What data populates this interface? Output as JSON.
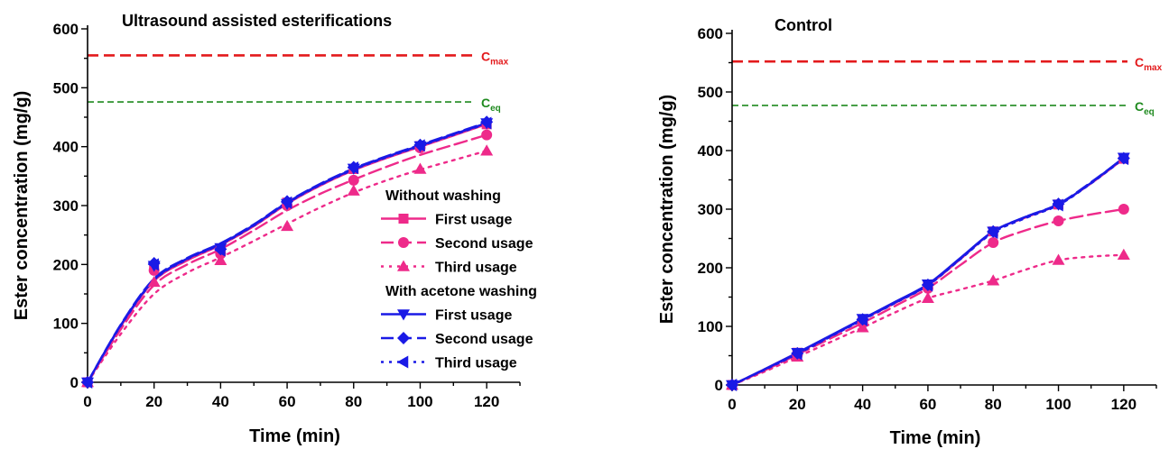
{
  "colors": {
    "magenta": "#ee2a8a",
    "blue": "#1a1ae6",
    "cmax": "#e31a1c",
    "ceq": "#1f8a1f",
    "axis": "#000000"
  },
  "chart_data": [
    {
      "type": "line",
      "title": "Ultrasound  assisted esterifications",
      "xlabel": "Time (min)",
      "ylabel": "Ester concentration (mg/g)",
      "xlim": [
        0,
        130
      ],
      "ylim": [
        0,
        600
      ],
      "xticks": [
        0,
        20,
        40,
        60,
        80,
        100,
        120
      ],
      "yticks": [
        0,
        100,
        200,
        300,
        400,
        500,
        600
      ],
      "x": [
        0,
        20,
        40,
        60,
        80,
        100,
        120
      ],
      "reference_lines": [
        {
          "label": "C",
          "sub": "max",
          "value": 555,
          "color": "#e31a1c"
        },
        {
          "label": "C",
          "sub": "eq",
          "value": 476,
          "color": "#1f8a1f"
        }
      ],
      "legend": {
        "groups": [
          {
            "heading": "Without washing",
            "items": [
              {
                "label": "First usage",
                "series": 0
              },
              {
                "label": "Second usage",
                "series": 1
              },
              {
                "label": "Third usage",
                "series": 2
              }
            ]
          },
          {
            "heading": "With acetone washing",
            "items": [
              {
                "label": "First usage",
                "series": 3
              },
              {
                "label": "Second usage",
                "series": 4
              },
              {
                "label": "Third usage",
                "series": 5
              }
            ]
          }
        ]
      },
      "series": [
        {
          "name": "Without washing – First usage",
          "color": "#ee2a8a",
          "dash": "solid",
          "marker": "square",
          "values": [
            0,
            195,
            225,
            305,
            362,
            401,
            438
          ],
          "curve": [
            [
              0,
              0
            ],
            [
              10,
              95
            ],
            [
              20,
              172
            ],
            [
              30,
              207
            ],
            [
              40,
              233
            ],
            [
              50,
              265
            ],
            [
              60,
              303
            ],
            [
              70,
              334
            ],
            [
              80,
              360
            ],
            [
              90,
              381
            ],
            [
              100,
              400
            ],
            [
              110,
              419
            ],
            [
              120,
              438
            ]
          ]
        },
        {
          "name": "Without washing – Second usage",
          "color": "#ee2a8a",
          "dash": "dashed",
          "marker": "circle",
          "values": [
            0,
            190,
            218,
            300,
            343,
            398,
            420
          ],
          "curve": [
            [
              0,
              0
            ],
            [
              10,
              90
            ],
            [
              20,
              165
            ],
            [
              30,
              200
            ],
            [
              40,
              226
            ],
            [
              50,
              258
            ],
            [
              60,
              292
            ],
            [
              70,
              320
            ],
            [
              80,
              344
            ],
            [
              90,
              366
            ],
            [
              100,
              386
            ],
            [
              110,
              403
            ],
            [
              120,
              420
            ]
          ]
        },
        {
          "name": "Without washing – Third usage",
          "color": "#ee2a8a",
          "dash": "dotted",
          "marker": "triangle-up",
          "values": [
            0,
            170,
            207,
            265,
            325,
            362,
            393
          ],
          "curve": [
            [
              0,
              0
            ],
            [
              10,
              82
            ],
            [
              20,
              150
            ],
            [
              30,
              186
            ],
            [
              40,
              212
            ],
            [
              50,
              240
            ],
            [
              60,
              269
            ],
            [
              70,
              297
            ],
            [
              80,
              322
            ],
            [
              90,
              343
            ],
            [
              100,
              361
            ],
            [
              110,
              377
            ],
            [
              120,
              393
            ]
          ]
        },
        {
          "name": "With acetone washing – First usage",
          "color": "#1a1ae6",
          "dash": "solid",
          "marker": "triangle-down",
          "values": [
            0,
            198,
            228,
            303,
            363,
            401,
            440
          ],
          "curve": [
            [
              0,
              0
            ],
            [
              10,
              97
            ],
            [
              20,
              174
            ],
            [
              30,
              210
            ],
            [
              40,
              235
            ],
            [
              50,
              267
            ],
            [
              60,
              305
            ],
            [
              70,
              336
            ],
            [
              80,
              362
            ],
            [
              90,
              383
            ],
            [
              100,
              402
            ],
            [
              110,
              421
            ],
            [
              120,
              440
            ]
          ]
        },
        {
          "name": "With acetone washing – Second usage",
          "color": "#1a1ae6",
          "dash": "dashed",
          "marker": "diamond",
          "values": [
            0,
            202,
            226,
            307,
            365,
            403,
            442
          ],
          "curve": [
            [
              0,
              0
            ],
            [
              10,
              98
            ],
            [
              20,
              176
            ],
            [
              30,
              211
            ],
            [
              40,
              236
            ],
            [
              50,
              268
            ],
            [
              60,
              306
            ],
            [
              70,
              337
            ],
            [
              80,
              363
            ],
            [
              90,
              384
            ],
            [
              100,
              403
            ],
            [
              110,
              422
            ],
            [
              120,
              441
            ]
          ]
        },
        {
          "name": "With acetone washing – Third usage",
          "color": "#1a1ae6",
          "dash": "dotted",
          "marker": "triangle-left",
          "values": [
            0,
            200,
            224,
            305,
            364,
            402,
            440
          ],
          "curve": [
            [
              0,
              0
            ],
            [
              10,
              96
            ],
            [
              20,
              173
            ],
            [
              30,
              209
            ],
            [
              40,
              234
            ],
            [
              50,
              266
            ],
            [
              60,
              304
            ],
            [
              70,
              335
            ],
            [
              80,
              361
            ],
            [
              90,
              382
            ],
            [
              100,
              401
            ],
            [
              110,
              420
            ],
            [
              120,
              439
            ]
          ]
        }
      ]
    },
    {
      "type": "line",
      "title": "Control",
      "xlabel": "Time (min)",
      "ylabel": "Ester concentration (mg/g)",
      "xlim": [
        0,
        130
      ],
      "ylim": [
        0,
        600
      ],
      "xticks": [
        0,
        20,
        40,
        60,
        80,
        100,
        120
      ],
      "yticks": [
        0,
        100,
        200,
        300,
        400,
        500,
        600
      ],
      "x": [
        0,
        20,
        40,
        60,
        80,
        100,
        120
      ],
      "reference_lines": [
        {
          "label": "C",
          "sub": "max",
          "value": 552,
          "color": "#e31a1c"
        },
        {
          "label": "C",
          "sub": "eq",
          "value": 477,
          "color": "#1f8a1f"
        }
      ],
      "series": [
        {
          "name": "Without washing – First usage",
          "color": "#ee2a8a",
          "dash": "solid",
          "marker": "square",
          "values": [
            0,
            55,
            112,
            170,
            262,
            308,
            386
          ],
          "curve": [
            [
              0,
              0
            ],
            [
              10,
              27
            ],
            [
              20,
              55
            ],
            [
              30,
              83
            ],
            [
              40,
              112
            ],
            [
              50,
              140
            ],
            [
              60,
              170
            ],
            [
              70,
              215
            ],
            [
              80,
              262
            ],
            [
              90,
              286
            ],
            [
              100,
              308
            ],
            [
              110,
              344
            ],
            [
              120,
              386
            ]
          ]
        },
        {
          "name": "Without washing – Second usage",
          "color": "#ee2a8a",
          "dash": "dashed",
          "marker": "circle",
          "values": [
            0,
            52,
            106,
            165,
            243,
            280,
            300
          ],
          "curve": [
            [
              0,
              0
            ],
            [
              10,
              25
            ],
            [
              20,
              52
            ],
            [
              30,
              79
            ],
            [
              40,
              106
            ],
            [
              50,
              135
            ],
            [
              60,
              165
            ],
            [
              70,
              205
            ],
            [
              80,
              243
            ],
            [
              90,
              264
            ],
            [
              100,
              280
            ],
            [
              110,
              291
            ],
            [
              120,
              300
            ]
          ]
        },
        {
          "name": "Without washing – Third usage",
          "color": "#ee2a8a",
          "dash": "dotted",
          "marker": "triangle-up",
          "values": [
            0,
            48,
            98,
            148,
            178,
            213,
            222
          ],
          "curve": [
            [
              0,
              0
            ],
            [
              10,
              23
            ],
            [
              20,
              48
            ],
            [
              30,
              73
            ],
            [
              40,
              98
            ],
            [
              50,
              124
            ],
            [
              60,
              148
            ],
            [
              70,
              163
            ],
            [
              80,
              178
            ],
            [
              90,
              197
            ],
            [
              100,
              213
            ],
            [
              110,
              219
            ],
            [
              120,
              222
            ]
          ]
        },
        {
          "name": "With acetone washing – First usage",
          "color": "#1a1ae6",
          "dash": "solid",
          "marker": "triangle-down",
          "values": [
            0,
            55,
            113,
            172,
            262,
            308,
            388
          ],
          "curve": [
            [
              0,
              0
            ],
            [
              10,
              27
            ],
            [
              20,
              55
            ],
            [
              30,
              84
            ],
            [
              40,
              113
            ],
            [
              50,
              142
            ],
            [
              60,
              172
            ],
            [
              70,
              217
            ],
            [
              80,
              262
            ],
            [
              90,
              287
            ],
            [
              100,
              308
            ],
            [
              110,
              345
            ],
            [
              120,
              388
            ]
          ]
        },
        {
          "name": "With acetone washing – Second usage",
          "color": "#1a1ae6",
          "dash": "dashed",
          "marker": "diamond",
          "values": [
            0,
            54,
            112,
            171,
            262,
            309,
            387
          ],
          "curve": [
            [
              0,
              0
            ],
            [
              10,
              27
            ],
            [
              20,
              54
            ],
            [
              30,
              83
            ],
            [
              40,
              112
            ],
            [
              50,
              141
            ],
            [
              60,
              171
            ],
            [
              70,
              216
            ],
            [
              80,
              262
            ],
            [
              90,
              287
            ],
            [
              100,
              309
            ],
            [
              110,
              346
            ],
            [
              120,
              387
            ]
          ]
        },
        {
          "name": "With acetone washing – Third usage",
          "color": "#1a1ae6",
          "dash": "dotted",
          "marker": "triangle-left",
          "values": [
            0,
            53,
            111,
            170,
            260,
            307,
            386
          ],
          "curve": [
            [
              0,
              0
            ],
            [
              10,
              26
            ],
            [
              20,
              53
            ],
            [
              30,
              82
            ],
            [
              40,
              111
            ],
            [
              50,
              140
            ],
            [
              60,
              170
            ],
            [
              70,
              215
            ],
            [
              80,
              260
            ],
            [
              90,
              285
            ],
            [
              100,
              307
            ],
            [
              110,
              344
            ],
            [
              120,
              386
            ]
          ]
        }
      ]
    }
  ]
}
